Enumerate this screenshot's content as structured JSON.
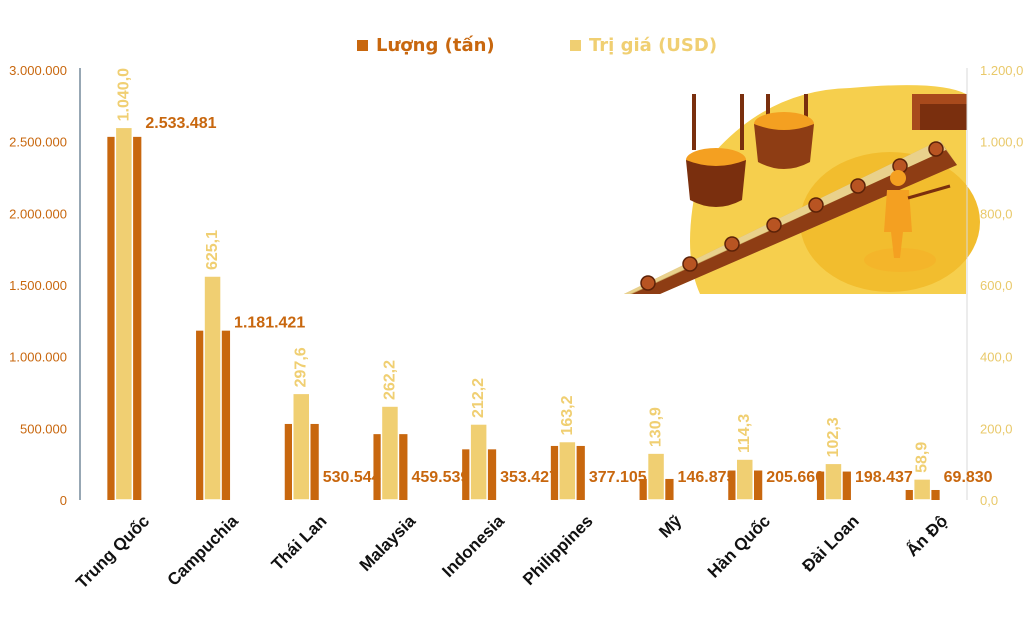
{
  "chart_data": {
    "type": "bar",
    "categories": [
      "Trung Quốc",
      "Campuchia",
      "Thái Lan",
      "Malaysia",
      "Indonesia",
      "Philippines",
      "Mỹ",
      "Hàn Quốc",
      "Đài Loan",
      "Ấn Độ"
    ],
    "series": [
      {
        "name": "Lượng (tấn)",
        "axis": "left",
        "color": "#c8670e",
        "values": [
          2533481,
          1181421,
          530544,
          459539,
          353427,
          377105,
          146875,
          205660,
          198437,
          69830
        ],
        "labels": [
          "2.533.481",
          "1.181.421",
          "530.544",
          "459.539",
          "353.427",
          "377.105",
          "146.875",
          "205.660",
          "198.437",
          "69.830"
        ]
      },
      {
        "name": "Trị giá (USD)",
        "axis": "right",
        "color": "#f0cf72",
        "values": [
          1040.0,
          625.1,
          297.6,
          262.2,
          212.2,
          163.2,
          130.9,
          114.3,
          102.3,
          58.9
        ],
        "labels": [
          "1.040,0",
          "625,1",
          "297,6",
          "262,2",
          "212,2",
          "163,2",
          "130,9",
          "114,3",
          "102,3",
          "58,9"
        ]
      }
    ],
    "y_left": {
      "min": 0,
      "max": 3000000,
      "ticks": [
        "0",
        "500.000",
        "1.000.000",
        "1.500.000",
        "2.000.000",
        "2.500.000",
        "3.000.000"
      ]
    },
    "y_right": {
      "min": 0,
      "max": 1200,
      "ticks": [
        "0,0",
        "200,0",
        "400,0",
        "600,0",
        "800,0",
        "1.000,0",
        "1.200,0"
      ]
    },
    "legend": "top-center",
    "grid": false
  },
  "illustration": {
    "icon": "steel-plant-icon"
  }
}
